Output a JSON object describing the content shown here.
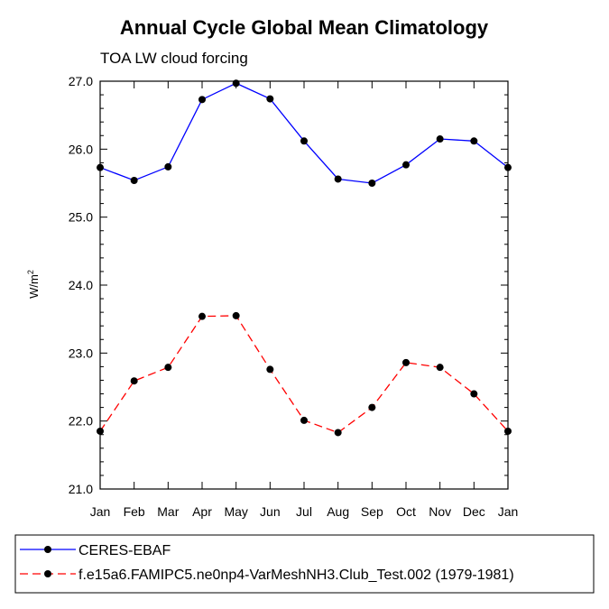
{
  "chart_data": {
    "type": "line",
    "title": "Annual Cycle Global Mean Climatology",
    "subtitle": "TOA LW cloud forcing",
    "ylabel": "W/m",
    "ylabel_superscript": "2",
    "xlabel": "",
    "ylim": [
      21.0,
      27.0
    ],
    "y_ticks": [
      "21.0",
      "22.0",
      "23.0",
      "24.0",
      "25.0",
      "26.0",
      "27.0"
    ],
    "categories": [
      "Jan",
      "Feb",
      "Mar",
      "Apr",
      "May",
      "Jun",
      "Jul",
      "Aug",
      "Sep",
      "Oct",
      "Nov",
      "Dec",
      "Jan"
    ],
    "grid": false,
    "legend_position": "bottom",
    "series": [
      {
        "name": "CERES-EBAF",
        "color": "#0000ff",
        "line_style": "solid",
        "marker": "filled-circle",
        "values": [
          25.73,
          25.54,
          25.74,
          26.73,
          26.97,
          26.74,
          26.12,
          25.56,
          25.5,
          25.77,
          26.15,
          26.12,
          25.73
        ]
      },
      {
        "name": "f.e15a6.FAMIPC5.ne0np4-VarMeshNH3.Club_Test.002 (1979-1981)",
        "color": "#ff0000",
        "line_style": "dashed",
        "marker": "filled-circle",
        "values": [
          21.85,
          22.59,
          22.79,
          23.54,
          23.55,
          22.76,
          22.01,
          21.83,
          22.2,
          22.86,
          22.79,
          22.4,
          21.85
        ]
      }
    ]
  }
}
